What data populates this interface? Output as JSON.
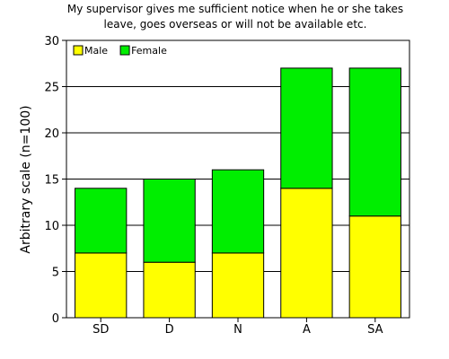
{
  "chart_data": {
    "type": "bar",
    "stacked": true,
    "title": "My supervisor gives me sufficient notice when he or she takes leave, goes overseas or will not be available etc.",
    "title_lines": [
      "My supervisor gives me sufficient notice when he or she takes",
      "leave, goes overseas or will not be available etc."
    ],
    "xlabel": "",
    "ylabel": "Arbitrary scale (n=100)",
    "categories": [
      "SD",
      "D",
      "N",
      "A",
      "SA"
    ],
    "series": [
      {
        "name": "Male",
        "color": "#ffff00",
        "values": [
          7,
          6,
          7,
          14,
          11
        ]
      },
      {
        "name": "Female",
        "color": "#00ee00",
        "values": [
          7,
          9,
          9,
          13,
          16
        ]
      }
    ],
    "ylim": [
      0,
      30
    ],
    "yticks": [
      0,
      5,
      10,
      15,
      20,
      25,
      30
    ],
    "grid": true,
    "legend_position": "top-left"
  }
}
